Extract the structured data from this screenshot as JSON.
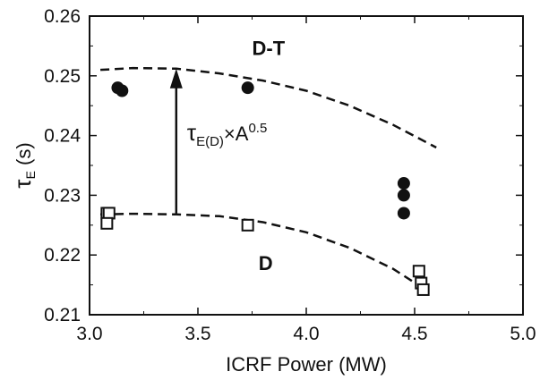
{
  "chart_data": {
    "type": "scatter",
    "xlabel": "ICRF Power (MW)",
    "ylabel": {
      "main": "τ",
      "sub": "E",
      "unit": " (s)"
    },
    "xlim": [
      3.0,
      5.0
    ],
    "ylim": [
      0.21,
      0.26
    ],
    "xticks": [
      3.0,
      3.5,
      4.0,
      4.5,
      5.0
    ],
    "yticks": [
      0.21,
      0.22,
      0.23,
      0.24,
      0.25,
      0.26
    ],
    "grid": false,
    "series": [
      {
        "name": "D-T",
        "marker": "filled-circle",
        "points": [
          [
            3.13,
            0.248
          ],
          [
            3.15,
            0.2475
          ],
          [
            3.73,
            0.248
          ],
          [
            4.45,
            0.232
          ],
          [
            4.45,
            0.23
          ],
          [
            4.45,
            0.227
          ]
        ],
        "fit": [
          [
            3.05,
            0.251
          ],
          [
            3.2,
            0.2513
          ],
          [
            3.4,
            0.2512
          ],
          [
            3.6,
            0.2504
          ],
          [
            3.8,
            0.2492
          ],
          [
            4.0,
            0.2475
          ],
          [
            4.2,
            0.245
          ],
          [
            4.4,
            0.2418
          ],
          [
            4.6,
            0.238
          ]
        ]
      },
      {
        "name": "D",
        "marker": "open-square",
        "points": [
          [
            3.08,
            0.227
          ],
          [
            3.09,
            0.227
          ],
          [
            3.08,
            0.2253
          ],
          [
            3.73,
            0.225
          ],
          [
            4.52,
            0.2173
          ],
          [
            4.53,
            0.2153
          ],
          [
            4.54,
            0.2142
          ]
        ],
        "fit": [
          [
            3.05,
            0.2268
          ],
          [
            3.2,
            0.2269
          ],
          [
            3.4,
            0.2268
          ],
          [
            3.6,
            0.2265
          ],
          [
            3.8,
            0.2255
          ],
          [
            4.0,
            0.2238
          ],
          [
            4.2,
            0.2212
          ],
          [
            4.4,
            0.2177
          ],
          [
            4.55,
            0.2142
          ]
        ]
      }
    ],
    "annotations": {
      "arrow": {
        "x": 3.4,
        "from_y": 0.227,
        "to_y": 0.2512
      },
      "arrow_label": {
        "base": "τ",
        "sub": "E(D)",
        "mid": "×A",
        "sup": "0.5"
      }
    }
  }
}
